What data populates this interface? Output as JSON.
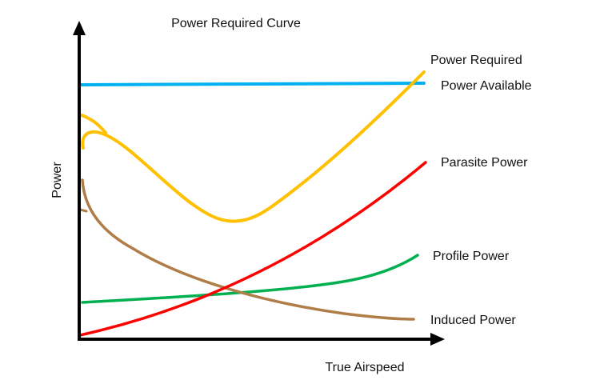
{
  "title": "Power Required Curve",
  "x_axis_label": "True Airspeed",
  "y_axis_label": "Power",
  "curves": [
    {
      "key": "power_required",
      "label": "Power Required",
      "color": "#FFC000"
    },
    {
      "key": "power_available",
      "label": "Power Available",
      "color": "#00B0F0"
    },
    {
      "key": "parasite_power",
      "label": "Parasite Power",
      "color": "#FF0000"
    },
    {
      "key": "profile_power",
      "label": "Profile Power",
      "color": "#00B050"
    },
    {
      "key": "induced_power",
      "label": "Induced Power",
      "color": "#B07D48"
    }
  ],
  "axis_color": "#000000"
}
